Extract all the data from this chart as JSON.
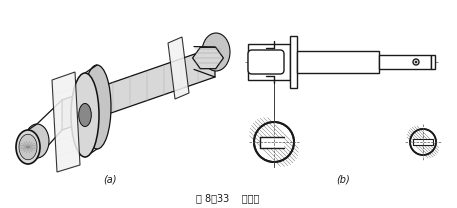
{
  "caption": "图 8－33    剖面图",
  "label_a": "(a)",
  "label_b": "(b)",
  "bg_color": "#ffffff",
  "line_color": "#1a1a1a",
  "figsize": [
    4.57,
    2.08
  ],
  "dpi": 100
}
